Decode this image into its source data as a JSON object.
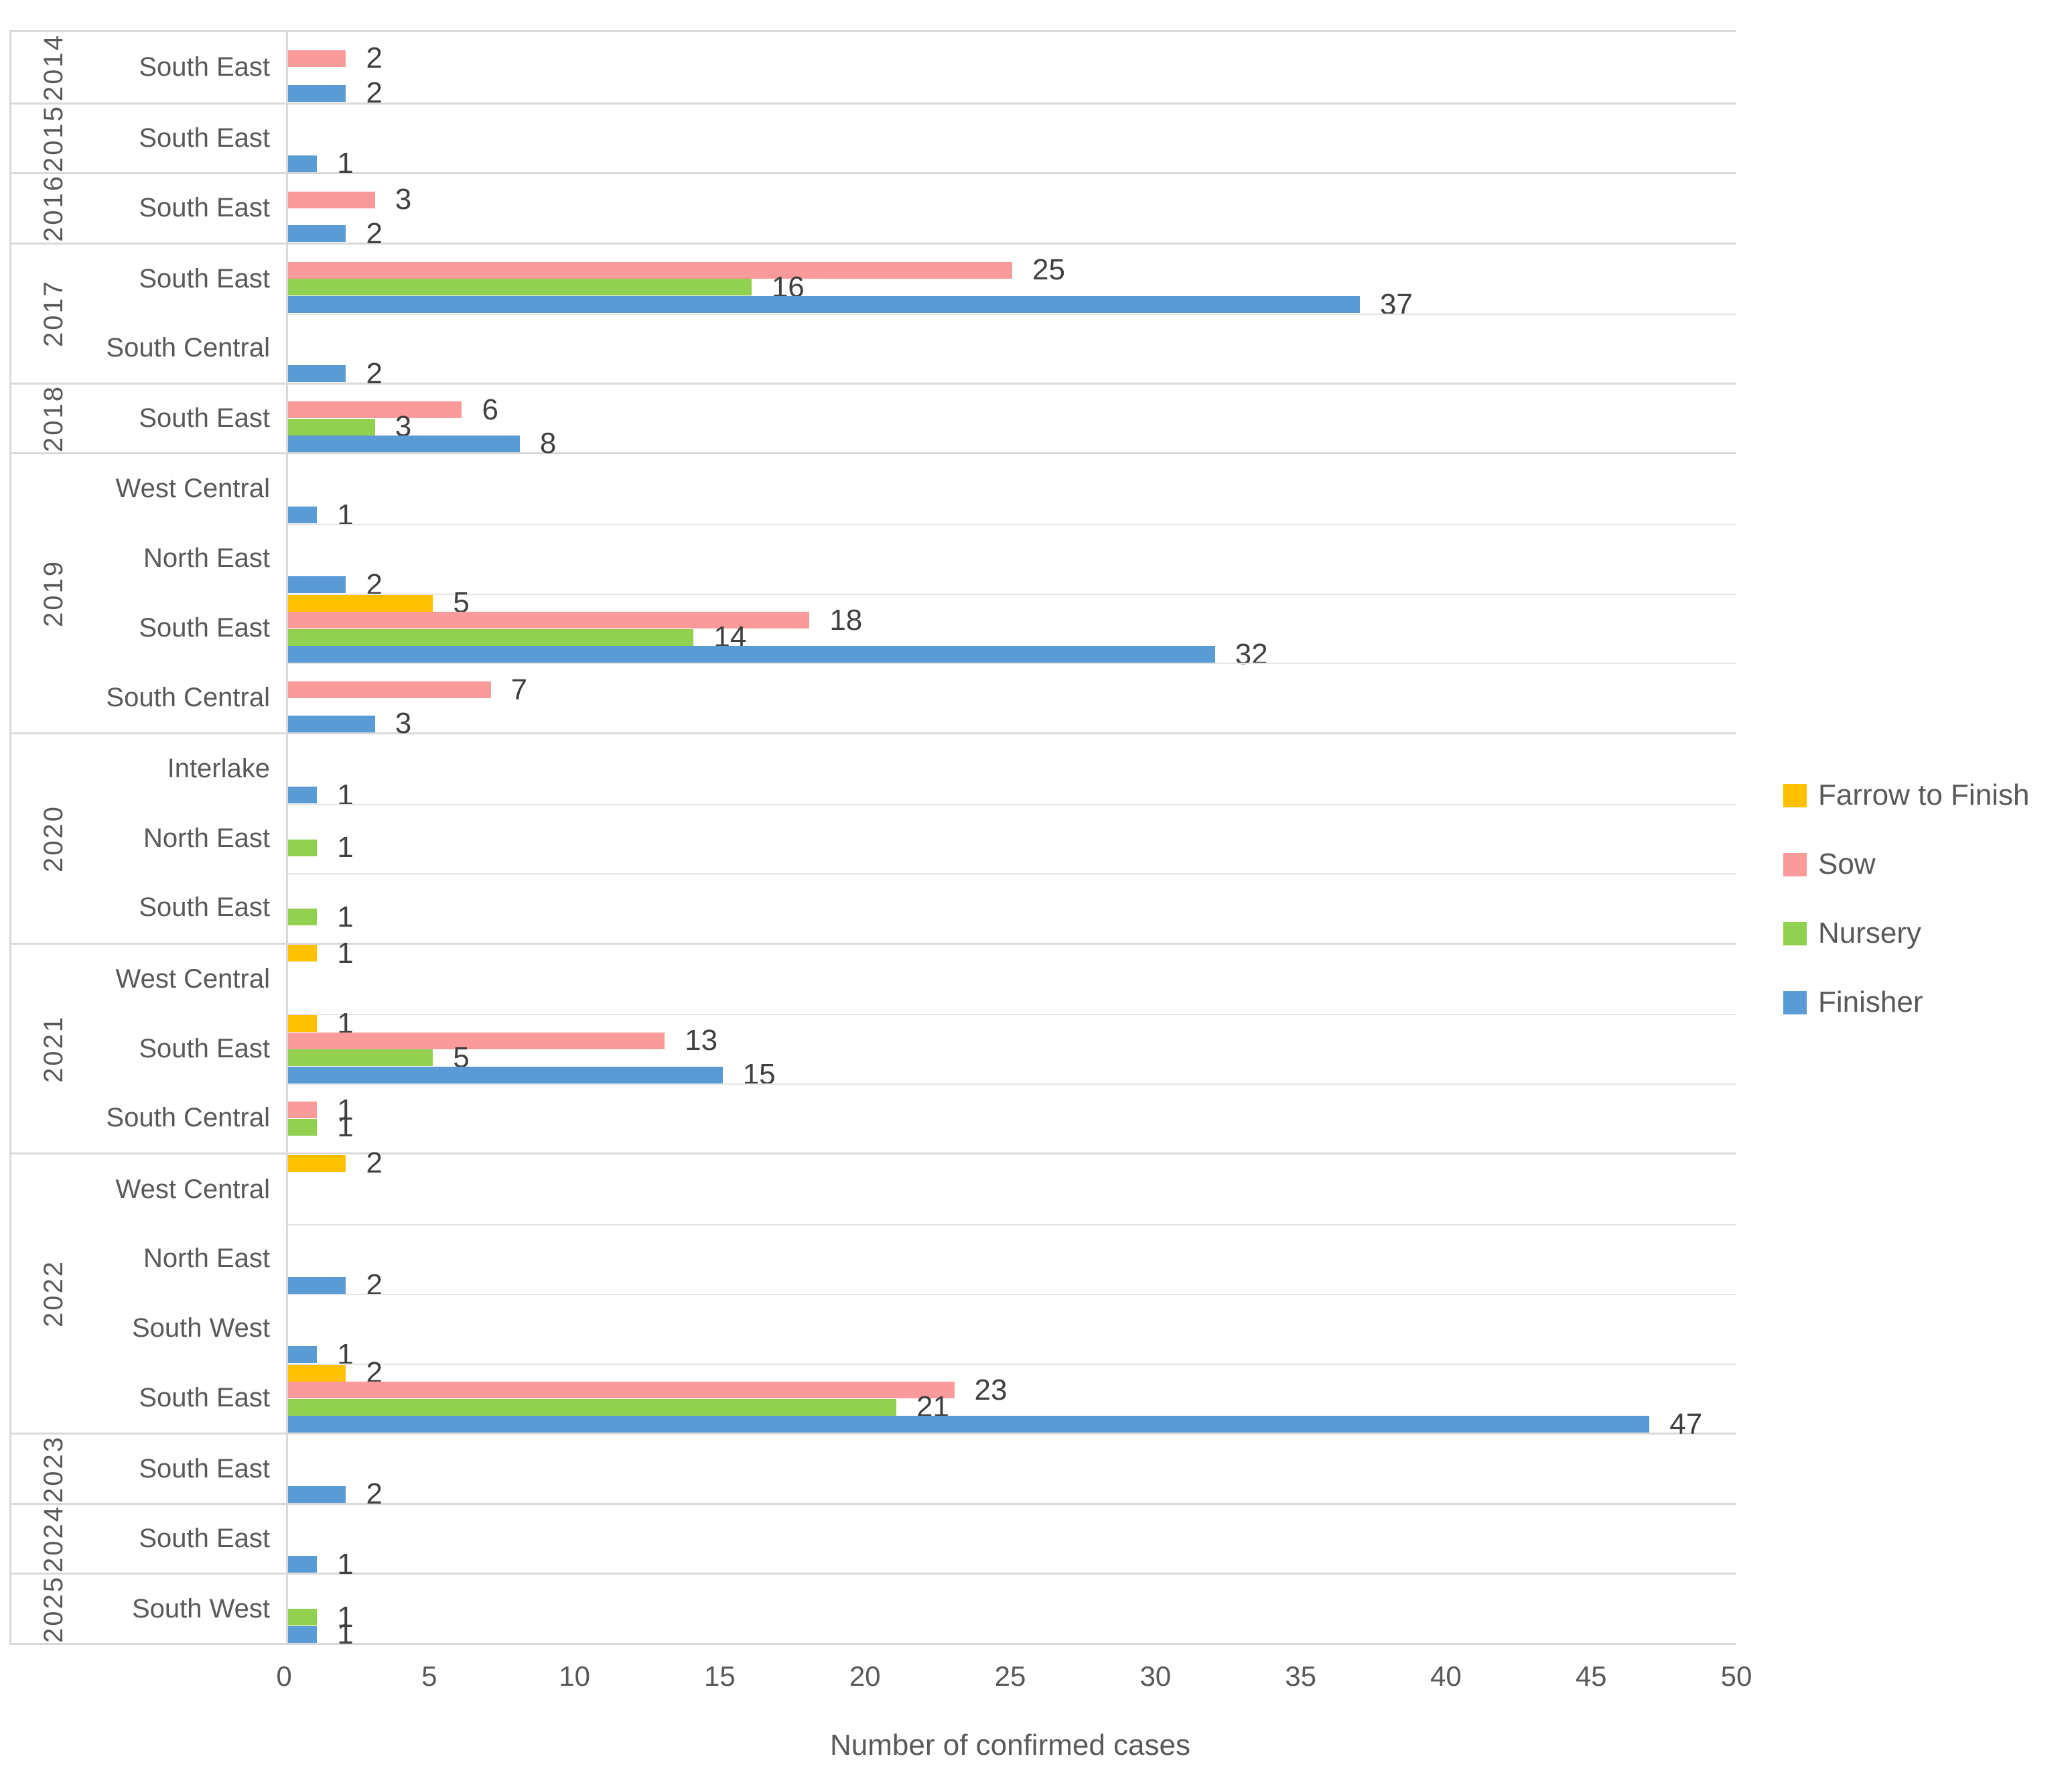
{
  "chart_data": {
    "type": "bar",
    "orientation": "horizontal",
    "title": "",
    "xlabel": "Number of confirmed cases",
    "xlim": [
      0,
      50
    ],
    "x_ticks": [
      0,
      5,
      10,
      15,
      20,
      25,
      30,
      35,
      40,
      45,
      50
    ],
    "grid": "on",
    "legend_position": "right",
    "series_order": [
      "Farrow to Finish",
      "Sow",
      "Nursery",
      "Finisher"
    ],
    "series_colors": {
      "Farrow to Finish": "#FFC000",
      "Sow": "#FA9A9A",
      "Nursery": "#92D050",
      "Finisher": "#5B9BD5"
    },
    "groups": [
      {
        "year": "2014",
        "rows": [
          {
            "region": "South East",
            "values": {
              "Sow": 2,
              "Finisher": 2
            }
          }
        ]
      },
      {
        "year": "2015",
        "rows": [
          {
            "region": "South East",
            "values": {
              "Finisher": 1
            }
          }
        ]
      },
      {
        "year": "2016",
        "rows": [
          {
            "region": "South East",
            "values": {
              "Sow": 3,
              "Finisher": 2
            }
          }
        ]
      },
      {
        "year": "2017",
        "rows": [
          {
            "region": "South East",
            "values": {
              "Sow": 25,
              "Nursery": 16,
              "Finisher": 37
            }
          },
          {
            "region": "South Central",
            "values": {
              "Finisher": 2
            }
          }
        ]
      },
      {
        "year": "2018",
        "rows": [
          {
            "region": "South East",
            "values": {
              "Sow": 6,
              "Nursery": 3,
              "Finisher": 8
            }
          }
        ]
      },
      {
        "year": "2019",
        "rows": [
          {
            "region": "West Central",
            "values": {
              "Finisher": 1
            }
          },
          {
            "region": "North East",
            "values": {
              "Finisher": 2
            }
          },
          {
            "region": "South East",
            "values": {
              "Farrow to Finish": 5,
              "Sow": 18,
              "Nursery": 14,
              "Finisher": 32
            }
          },
          {
            "region": "South Central",
            "values": {
              "Sow": 7,
              "Finisher": 3
            }
          }
        ]
      },
      {
        "year": "2020",
        "rows": [
          {
            "region": "Interlake",
            "values": {
              "Finisher": 1
            }
          },
          {
            "region": "North East",
            "values": {
              "Nursery": 1
            }
          },
          {
            "region": "South East",
            "values": {
              "Nursery": 1
            }
          }
        ]
      },
      {
        "year": "2021",
        "rows": [
          {
            "region": "West Central",
            "values": {
              "Farrow to Finish": 1
            }
          },
          {
            "region": "South East",
            "values": {
              "Farrow to Finish": 1,
              "Sow": 13,
              "Nursery": 5,
              "Finisher": 15
            }
          },
          {
            "region": "South Central",
            "values": {
              "Sow": 1,
              "Nursery": 1
            }
          }
        ]
      },
      {
        "year": "2022",
        "rows": [
          {
            "region": "West Central",
            "values": {
              "Farrow to Finish": 2
            }
          },
          {
            "region": "North East",
            "values": {
              "Finisher": 2
            }
          },
          {
            "region": "South West",
            "values": {
              "Finisher": 1
            }
          },
          {
            "region": "South East",
            "values": {
              "Farrow to Finish": 2,
              "Sow": 23,
              "Nursery": 21,
              "Finisher": 47
            }
          }
        ]
      },
      {
        "year": "2023",
        "rows": [
          {
            "region": "South East",
            "values": {
              "Finisher": 2
            }
          }
        ]
      },
      {
        "year": "2024",
        "rows": [
          {
            "region": "South East",
            "values": {
              "Finisher": 1
            }
          }
        ]
      },
      {
        "year": "2025",
        "rows": [
          {
            "region": "South West",
            "values": {
              "Nursery": 1,
              "Finisher": 1
            }
          }
        ]
      }
    ],
    "legend": [
      "Farrow to Finish",
      "Sow",
      "Nursery",
      "Finisher"
    ]
  },
  "colors": {
    "grid_major": "#D9D9D9",
    "grid_minor": "#E5E5E5",
    "axis_text": "#595959",
    "data_label_text": "#404040"
  }
}
